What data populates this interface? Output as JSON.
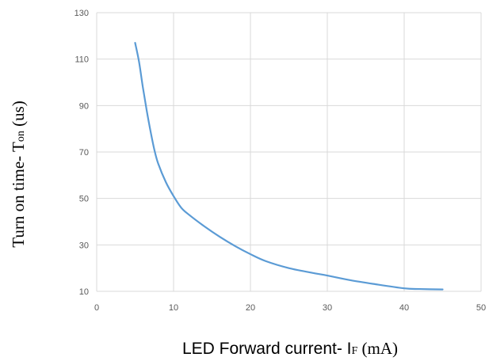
{
  "chart_data": {
    "type": "line",
    "title": "",
    "xlabel": {
      "prefix": "LED Forward current- I",
      "subscript": "F",
      "suffix": " (mA)"
    },
    "ylabel": {
      "prefix": "Turn on time- T",
      "subscript": "on",
      "suffix": " (us)"
    },
    "xlim": [
      0,
      50
    ],
    "ylim": [
      10,
      130
    ],
    "xticks": [
      0,
      10,
      20,
      30,
      40,
      50
    ],
    "yticks": [
      10,
      30,
      50,
      70,
      90,
      110,
      130
    ],
    "grid": true,
    "legend": "none",
    "series": [
      {
        "color": "#5b9bd5",
        "x": [
          5,
          5.5,
          6,
          6.5,
          7,
          7.5,
          8,
          9,
          10,
          11,
          12,
          14,
          16,
          18,
          20,
          22,
          25,
          28,
          30,
          33,
          36,
          40,
          42,
          45
        ],
        "y": [
          117,
          109,
          98,
          88,
          79,
          71,
          65,
          57,
          51,
          46,
          43,
          38,
          33.5,
          29.5,
          26,
          23,
          20,
          18,
          16.8,
          14.8,
          13.2,
          11.3,
          11,
          10.8
        ]
      }
    ]
  }
}
